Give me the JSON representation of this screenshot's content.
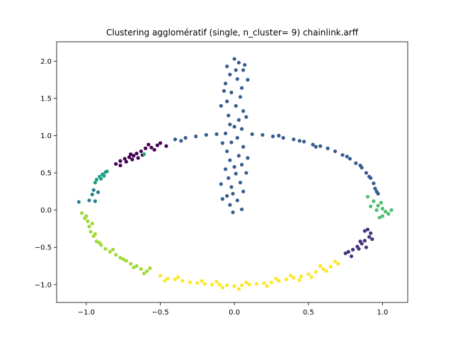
{
  "chart_data": {
    "type": "scatter",
    "title": "Clustering agglomératif (single, n_cluster= 9) chainlink.arff",
    "xlabel": "",
    "ylabel": "",
    "xlim": [
      -1.2,
      1.17
    ],
    "ylim": [
      -1.24,
      2.26
    ],
    "x_ticks": [
      -1.0,
      -0.5,
      0.0,
      0.5,
      1.0
    ],
    "x_tick_labels": [
      "−1.0",
      "−0.5",
      "0.0",
      "0.5",
      "1.0"
    ],
    "y_ticks": [
      -1.0,
      -0.5,
      0.0,
      0.5,
      1.0,
      1.5,
      2.0
    ],
    "y_tick_labels": [
      "−1.0",
      "−0.5",
      "0.0",
      "0.5",
      "1.0",
      "1.5",
      "2.0"
    ],
    "grid": false,
    "legend": "none",
    "colors": {
      "purple": "#440154",
      "indigo": "#46327e",
      "blue": "#365c8d",
      "teal": "#277f8e",
      "cyan": "#1fa187",
      "green": "#4ac16d",
      "lime": "#a0da39",
      "yellow": "#fde725"
    },
    "clusters": [
      {
        "color": "blue",
        "desc": "vertical ring plus upper arc",
        "shape": "mixed",
        "points": [
          [
            0,
            2.03
          ],
          [
            0.03,
            1.98
          ],
          [
            -0.05,
            1.93
          ],
          [
            0.06,
            1.88
          ],
          [
            -0.03,
            1.82
          ],
          [
            0.02,
            1.76
          ],
          [
            -0.06,
            1.7
          ],
          [
            0.05,
            1.64
          ],
          [
            -0.02,
            1.58
          ],
          [
            0.04,
            1.52
          ],
          [
            -0.05,
            1.46
          ],
          [
            0.01,
            1.4
          ],
          [
            0.06,
            1.33
          ],
          [
            -0.04,
            1.27
          ],
          [
            0.03,
            1.21
          ],
          [
            -0.03,
            1.15
          ],
          [
            0.05,
            1.09
          ],
          [
            -0.06,
            1.03
          ],
          [
            0.02,
            0.97
          ],
          [
            -0.02,
            0.91
          ],
          [
            0.06,
            0.85
          ],
          [
            -0.05,
            0.79
          ],
          [
            0.03,
            0.73
          ],
          [
            -0.03,
            0.67
          ],
          [
            0.05,
            0.61
          ],
          [
            -0.06,
            0.55
          ],
          [
            0.01,
            0.49
          ],
          [
            -0.04,
            0.43
          ],
          [
            0.04,
            0.37
          ],
          [
            -0.02,
            0.31
          ],
          [
            0.06,
            0.25
          ],
          [
            -0.05,
            0.19
          ],
          [
            0.02,
            0.13
          ],
          [
            -0.03,
            0.07
          ],
          [
            0.05,
            0.01
          ],
          [
            -0.01,
            -0.03
          ],
          [
            0.07,
            1.95
          ],
          [
            -0.07,
            1.6
          ],
          [
            0.08,
            1.25
          ],
          [
            -0.08,
            0.9
          ],
          [
            0.08,
            0.5
          ],
          [
            -0.08,
            0.15
          ],
          [
            0.09,
            1.75
          ],
          [
            -0.09,
            1.4
          ],
          [
            0.09,
            0.7
          ],
          [
            -0.09,
            0.35
          ],
          [
            0.0,
            1.12
          ],
          [
            0.0,
            0.58
          ],
          [
            0.01,
            1.88
          ],
          [
            -0.01,
            0.22
          ],
          [
            -0.4,
            0.95
          ],
          [
            -0.33,
            0.97
          ],
          [
            -0.26,
            0.99
          ],
          [
            -0.19,
            1.01
          ],
          [
            -0.12,
            1.02
          ],
          [
            0.12,
            1.02
          ],
          [
            0.19,
            1.01
          ],
          [
            0.26,
            0.99
          ],
          [
            0.33,
            0.97
          ],
          [
            0.4,
            0.95
          ],
          [
            0.47,
            0.92
          ],
          [
            0.53,
            0.88
          ],
          [
            0.58,
            0.86
          ],
          [
            0.63,
            0.83
          ],
          [
            0.68,
            0.79
          ],
          [
            0.73,
            0.74
          ],
          [
            0.78,
            0.69
          ],
          [
            0.82,
            0.63
          ],
          [
            0.86,
            0.57
          ],
          [
            0.89,
            0.5
          ],
          [
            0.92,
            0.43
          ],
          [
            0.94,
            0.36
          ],
          [
            0.95,
            0.29
          ],
          [
            0.97,
            0.22
          ],
          [
            0.76,
            0.72
          ],
          [
            0.85,
            0.6
          ],
          [
            0.91,
            0.45
          ],
          [
            0.96,
            0.25
          ],
          [
            0.55,
            0.85
          ],
          [
            0.44,
            0.93
          ],
          [
            -0.36,
            0.93
          ],
          [
            0.3,
            1.0
          ]
        ]
      },
      {
        "color": "purple",
        "desc": "upper-left arc",
        "shape": "points",
        "points": [
          [
            -0.8,
            0.62
          ],
          [
            -0.77,
            0.66
          ],
          [
            -0.74,
            0.69
          ],
          [
            -0.71,
            0.71
          ],
          [
            -0.68,
            0.73
          ],
          [
            -0.66,
            0.76
          ],
          [
            -0.63,
            0.79
          ],
          [
            -0.6,
            0.83
          ],
          [
            -0.56,
            0.84
          ],
          [
            -0.52,
            0.87
          ],
          [
            -0.5,
            0.9
          ],
          [
            -0.73,
            0.65
          ],
          [
            -0.69,
            0.68
          ],
          [
            -0.65,
            0.7
          ],
          [
            -0.77,
            0.6
          ],
          [
            -0.62,
            0.74
          ],
          [
            -0.7,
            0.75
          ],
          [
            -0.58,
            0.88
          ],
          [
            -0.54,
            0.81
          ],
          [
            -0.46,
            0.86
          ]
        ]
      },
      {
        "color": "cyan",
        "desc": "left arc segment",
        "shape": "points",
        "points": [
          [
            -0.93,
            0.41
          ],
          [
            -0.91,
            0.45
          ],
          [
            -0.89,
            0.48
          ],
          [
            -0.87,
            0.51
          ],
          [
            -0.94,
            0.37
          ],
          [
            -0.9,
            0.42
          ],
          [
            -0.88,
            0.46
          ],
          [
            -0.86,
            0.52
          ],
          [
            -0.61,
            0.75
          ]
        ]
      },
      {
        "color": "teal",
        "desc": "left arc segment",
        "shape": "points",
        "points": [
          [
            -1.05,
            0.11
          ],
          [
            -0.98,
            0.13
          ],
          [
            -0.96,
            0.21
          ],
          [
            -0.95,
            0.27
          ],
          [
            -0.94,
            0.12
          ],
          [
            -0.92,
            0.24
          ]
        ]
      },
      {
        "color": "lime",
        "desc": "lower-left arc",
        "shape": "points",
        "points": [
          [
            -1.03,
            -0.04
          ],
          [
            -1.0,
            -0.08
          ],
          [
            -0.99,
            -0.15
          ],
          [
            -0.98,
            -0.22
          ],
          [
            -0.97,
            -0.29
          ],
          [
            -0.95,
            -0.35
          ],
          [
            -0.93,
            -0.42
          ],
          [
            -0.9,
            -0.47
          ],
          [
            -0.87,
            -0.52
          ],
          [
            -0.84,
            -0.56
          ],
          [
            -0.8,
            -0.6
          ],
          [
            -0.77,
            -0.64
          ],
          [
            -0.73,
            -0.68
          ],
          [
            -0.7,
            -0.72
          ],
          [
            -0.66,
            -0.75
          ],
          [
            -0.63,
            -0.79
          ],
          [
            -0.59,
            -0.82
          ],
          [
            -1.01,
            -0.11
          ],
          [
            -0.96,
            -0.18
          ],
          [
            -0.94,
            -0.32
          ],
          [
            -0.91,
            -0.44
          ],
          [
            -0.82,
            -0.53
          ],
          [
            -0.75,
            -0.66
          ],
          [
            -0.68,
            -0.77
          ],
          [
            -0.61,
            -0.85
          ],
          [
            -0.57,
            -0.78
          ]
        ]
      },
      {
        "color": "yellow",
        "desc": "bottom arc",
        "shape": "points",
        "points": [
          [
            -0.5,
            -0.88
          ],
          [
            -0.45,
            -0.92
          ],
          [
            -0.4,
            -0.93
          ],
          [
            -0.35,
            -0.95
          ],
          [
            -0.3,
            -0.97
          ],
          [
            -0.25,
            -0.98
          ],
          [
            -0.2,
            -0.99
          ],
          [
            -0.15,
            -1.0
          ],
          [
            -0.1,
            -1.0
          ],
          [
            -0.05,
            -1.01
          ],
          [
            0.0,
            -1.02
          ],
          [
            0.05,
            -1.01
          ],
          [
            0.1,
            -1.0
          ],
          [
            0.15,
            -0.99
          ],
          [
            0.2,
            -0.98
          ],
          [
            0.25,
            -0.97
          ],
          [
            0.3,
            -0.95
          ],
          [
            0.35,
            -0.93
          ],
          [
            0.4,
            -0.91
          ],
          [
            0.45,
            -0.89
          ],
          [
            0.5,
            -0.86
          ],
          [
            0.55,
            -0.83
          ],
          [
            0.6,
            -0.79
          ],
          [
            0.65,
            -0.76
          ],
          [
            0.7,
            -0.72
          ],
          [
            -0.47,
            -0.95
          ],
          [
            -0.38,
            -0.9
          ],
          [
            -0.22,
            -0.95
          ],
          [
            -0.08,
            -1.04
          ],
          [
            0.08,
            -0.97
          ],
          [
            0.22,
            -1.02
          ],
          [
            0.38,
            -0.88
          ],
          [
            0.52,
            -0.9
          ],
          [
            0.62,
            -0.82
          ],
          [
            0.68,
            -0.69
          ],
          [
            -0.12,
            -0.96
          ],
          [
            0.03,
            -1.06
          ],
          [
            0.28,
            -0.92
          ],
          [
            0.44,
            -0.94
          ],
          [
            0.58,
            -0.75
          ]
        ]
      },
      {
        "color": "indigo",
        "desc": "lower-right arc",
        "shape": "points",
        "points": [
          [
            0.77,
            -0.56
          ],
          [
            0.8,
            -0.53
          ],
          [
            0.83,
            -0.49
          ],
          [
            0.86,
            -0.45
          ],
          [
            0.88,
            -0.41
          ],
          [
            0.91,
            -0.36
          ],
          [
            0.92,
            -0.31
          ],
          [
            0.9,
            -0.26
          ],
          [
            0.88,
            -0.28
          ],
          [
            0.84,
            -0.52
          ],
          [
            0.79,
            -0.62
          ],
          [
            0.75,
            -0.58
          ],
          [
            0.85,
            -0.42
          ],
          [
            0.89,
            -0.5
          ],
          [
            0.93,
            -0.39
          ]
        ]
      },
      {
        "color": "green",
        "desc": "right arc segment",
        "shape": "points",
        "points": [
          [
            0.9,
            0.18
          ],
          [
            0.94,
            0.12
          ],
          [
            0.97,
            0.06
          ],
          [
            1.0,
            0.02
          ],
          [
            1.02,
            -0.02
          ],
          [
            1.04,
            -0.05
          ],
          [
            1.0,
            -0.08
          ],
          [
            0.98,
            -0.1
          ],
          [
            0.96,
            0.0
          ],
          [
            0.92,
            0.05
          ],
          [
            1.06,
            0.0
          ],
          [
            0.99,
            0.1
          ]
        ]
      }
    ]
  }
}
